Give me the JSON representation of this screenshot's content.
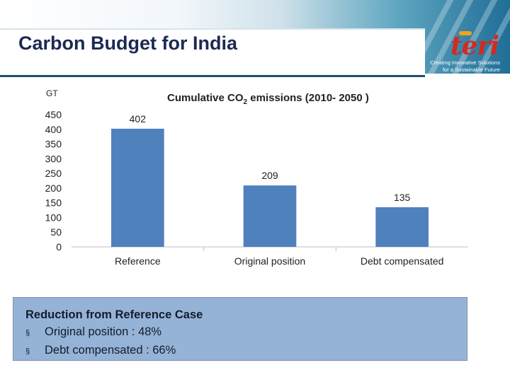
{
  "slide": {
    "title": "Carbon Budget for India",
    "logo_text": "teri",
    "tagline": [
      "Creating Innovative Solutions",
      "for a Sustainable Future"
    ]
  },
  "chart_data": {
    "type": "bar",
    "title_main": "Cumulative CO",
    "title_sub": "2",
    "title_rest": " emissions  (2010- 2050 )",
    "ylabel": "GT",
    "categories": [
      "Reference",
      "Original position",
      "Debt compensated"
    ],
    "values": [
      402,
      209,
      135
    ],
    "ylim": [
      0,
      450
    ],
    "yticks": [
      0,
      50,
      100,
      150,
      200,
      250,
      300,
      350,
      400,
      450
    ],
    "bar_color": "#4f81bd",
    "data_labels": true,
    "grid": false,
    "legend": "none"
  },
  "reduction": {
    "title": "Reduction from Reference Case",
    "bullet": "§",
    "items": [
      "Original position : 48%",
      "Debt compensated : 66%"
    ]
  }
}
